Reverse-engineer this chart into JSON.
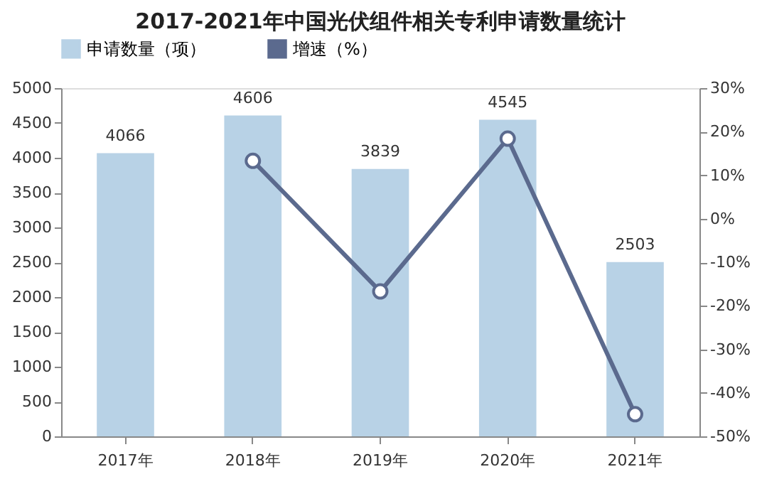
{
  "chart_data": {
    "type": "bar",
    "title": "2017-2021年中国光伏组件相关专利申请数量统计",
    "categories": [
      "2017年",
      "2018年",
      "2019年",
      "2020年",
      "2021年"
    ],
    "series": [
      {
        "name": "申请数量（项）",
        "color": "#b8d2e6",
        "values": [
          4066,
          4606,
          3839,
          4545,
          2503
        ],
        "value_labels": [
          "4066",
          "4606",
          "3839",
          "4545",
          "2503"
        ]
      },
      {
        "name": "增速（%）",
        "type": "line",
        "axis": "y2",
        "color": "#5b6a8e",
        "marker": "circle",
        "values": [
          null,
          13.3,
          -16.7,
          18.4,
          -44.9
        ]
      }
    ],
    "ylim": [
      0,
      5000
    ],
    "yticks": [
      0,
      500,
      1000,
      1500,
      2000,
      2500,
      3000,
      3500,
      4000,
      4500,
      5000
    ],
    "y2lim": [
      -50,
      30
    ],
    "y2ticks": [
      {
        "value": -50,
        "label": "-50%"
      },
      {
        "value": -40,
        "label": "-40%"
      },
      {
        "value": -30,
        "label": "-30%"
      },
      {
        "value": -20,
        "label": "-20%"
      },
      {
        "value": -10,
        "label": "-10%"
      },
      {
        "value": 0,
        "label": "0%"
      },
      {
        "value": 10,
        "label": "10%"
      },
      {
        "value": 20,
        "label": "20%"
      },
      {
        "value": 30,
        "label": "30%"
      }
    ],
    "grid": false,
    "legend": "top"
  }
}
